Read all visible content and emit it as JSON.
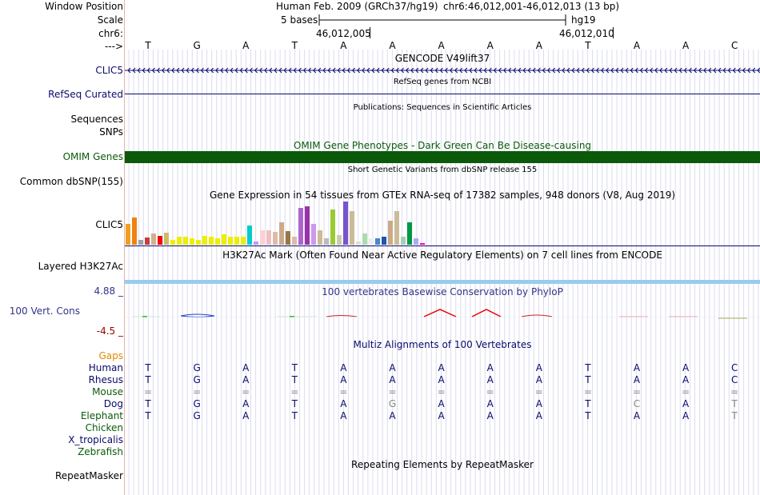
{
  "labels": {
    "window_position": "Window Position",
    "scale": "Scale",
    "chr": "chr6:",
    "arrow": "--->",
    "clic5_gene": "CLIC5",
    "refseq": "RefSeq Curated",
    "sequences": "Sequences",
    "snps": "SNPs",
    "omim": "OMIM Genes",
    "dbsnp": "Common dbSNP(155)",
    "gtex": "CLIC5",
    "h3k27ac": "Layered H3K27Ac",
    "cons_max": "4.88 _",
    "cons_name": "100 Vert. Cons",
    "cons_min": "-4.5 _",
    "gaps": "Gaps",
    "species": [
      "Human",
      "Rhesus",
      "Mouse",
      "Dog",
      "Elephant",
      "Chicken",
      "X_tropicalis",
      "Zebrafish"
    ],
    "repeatmasker": "RepeatMasker"
  },
  "header": {
    "assembly": "Human Feb. 2009 (GRCh37/hg19)",
    "position": "chr6:46,012,001-46,012,013 (13 bp)",
    "scale_bar": "5 bases",
    "scale_db": "hg19",
    "tick_left": "46,012,005",
    "tick_right": "46,012,010"
  },
  "sequence": [
    "T",
    "G",
    "A",
    "T",
    "A",
    "A",
    "A",
    "A",
    "A",
    "T",
    "A",
    "A",
    "C"
  ],
  "tracks": {
    "gencode": "GENCODE V49lift37",
    "refseq": "RefSeq genes from NCBI",
    "publications": "Publications: Sequences in Scientific Articles",
    "omim": "OMIM Gene Phenotypes - Dark Green Can Be Disease-causing",
    "dbsnp": "Short Genetic Variants from dbSNP release 155",
    "gtex": "Gene Expression in 54 tissues from GTEx RNA-seq of 17382 samples, 948 donors (V8, Aug 2019)",
    "h3k27ac": "H3K27Ac Mark (Often Found Near Active Regulatory Elements) on 7 cell lines from ENCODE",
    "phylop": "100 vertebrates Basewise Conservation by PhyloP",
    "multiz": "Multiz Alignments of 100 Vertebrates",
    "repeatmasker": "Repeating Elements by RepeatMasker"
  },
  "alignment": {
    "Human": [
      "T",
      "G",
      "A",
      "T",
      "A",
      "A",
      "A",
      "A",
      "A",
      "T",
      "A",
      "A",
      "C"
    ],
    "Rhesus": [
      "T",
      "G",
      "A",
      "T",
      "A",
      "A",
      "A",
      "A",
      "A",
      "T",
      "A",
      "A",
      "C"
    ],
    "Mouse": [
      "=",
      "=",
      "=",
      "=",
      "=",
      "=",
      "=",
      "=",
      "=",
      "=",
      "=",
      "=",
      "="
    ],
    "Dog": [
      "T",
      "G",
      "A",
      "T",
      "A",
      "G",
      "A",
      "A",
      "A",
      "T",
      "C",
      "A",
      "T"
    ],
    "Elephant": [
      "T",
      "G",
      "A",
      "T",
      "A",
      "A",
      "A",
      "A",
      "A",
      "T",
      "A",
      "A",
      "T"
    ]
  },
  "dog_mismatch": [
    5,
    10,
    12
  ],
  "elephant_mismatch": [
    12
  ],
  "gtex_bars": [
    {
      "h": 26,
      "c": "#f0a020"
    },
    {
      "h": 34,
      "c": "#f08010"
    },
    {
      "h": 6,
      "c": "#a0a0a0"
    },
    {
      "h": 9,
      "c": "#c04040"
    },
    {
      "h": 14,
      "c": "#d0b090"
    },
    {
      "h": 11,
      "c": "#ff0000"
    },
    {
      "h": 15,
      "c": "#ccbb66"
    },
    {
      "h": 6,
      "c": "#eeee00"
    },
    {
      "h": 10,
      "c": "#eeee00"
    },
    {
      "h": 10,
      "c": "#eeee00"
    },
    {
      "h": 8,
      "c": "#eeee00"
    },
    {
      "h": 6,
      "c": "#eeee00"
    },
    {
      "h": 11,
      "c": "#eeee00"
    },
    {
      "h": 10,
      "c": "#eeee00"
    },
    {
      "h": 8,
      "c": "#eeee00"
    },
    {
      "h": 13,
      "c": "#eeee00"
    },
    {
      "h": 10,
      "c": "#eeee00"
    },
    {
      "h": 10,
      "c": "#eeee00"
    },
    {
      "h": 10,
      "c": "#eeee00"
    },
    {
      "h": 24,
      "c": "#00cccc"
    },
    {
      "h": 4,
      "c": "#bb99ff"
    },
    {
      "h": 18,
      "c": "#ffd0d0"
    },
    {
      "h": 18,
      "c": "#eec0c0"
    },
    {
      "h": 16,
      "c": "#ddbbaa"
    },
    {
      "h": 28,
      "c": "#ccaa88"
    },
    {
      "h": 17,
      "c": "#997744"
    },
    {
      "h": 10,
      "c": "#ddbbaa"
    },
    {
      "h": 46,
      "c": "#aa66cc"
    },
    {
      "h": 48,
      "c": "#9933aa"
    },
    {
      "h": 26,
      "c": "#cc99ee"
    },
    {
      "h": 18,
      "c": "#ccbb99"
    },
    {
      "h": 8,
      "c": "#bbbbbb"
    },
    {
      "h": 44,
      "c": "#99cc33"
    },
    {
      "h": 12,
      "c": "#ccccaa"
    },
    {
      "h": 54,
      "c": "#7755cc"
    },
    {
      "h": 42,
      "c": "#ccbb99"
    },
    {
      "h": 4,
      "c": "#dddddd"
    },
    {
      "h": 14,
      "c": "#aaddaa"
    },
    {
      "h": 8,
      "c": "#eeeeee"
    },
    {
      "h": 8,
      "c": "#4488cc"
    },
    {
      "h": 10,
      "c": "#2255aa"
    },
    {
      "h": 30,
      "c": "#ccaa88"
    },
    {
      "h": 42,
      "c": "#ccbb99"
    },
    {
      "h": 10,
      "c": "#aaccbb"
    },
    {
      "h": 28,
      "c": "#009944"
    },
    {
      "h": 8,
      "c": "#aaaaff"
    },
    {
      "h": 2,
      "c": "#ff00cc"
    }
  ],
  "colors": {
    "omim": "#0a5a0a",
    "h3k27ac": "#99ccee",
    "phylop_label": "#333388",
    "cons_min": "#990000",
    "gaps": "#e08a00",
    "navy": "#0a0a6e",
    "green": "#0a5a0a",
    "mismatch": "#888888",
    "grid": "#dcdcf0"
  }
}
